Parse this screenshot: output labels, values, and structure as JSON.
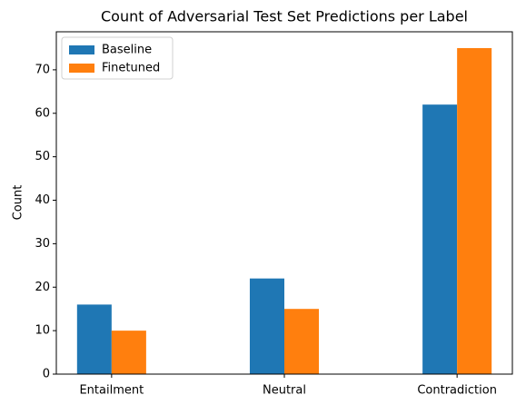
{
  "chart_data": {
    "type": "bar",
    "title": "Count of Adversarial Test Set Predictions per Label",
    "y_label": "Count",
    "categories": [
      "Entailment",
      "Neutral",
      "Contradiction"
    ],
    "series": [
      {
        "name": "Baseline",
        "color": "#1f77b4",
        "values": [
          16,
          22,
          62
        ]
      },
      {
        "name": "Finetuned",
        "color": "#ff7f0e",
        "values": [
          10,
          15,
          75
        ]
      }
    ],
    "ylim": [
      0,
      78.75
    ],
    "yticks": [
      0,
      10,
      20,
      30,
      40,
      50,
      60,
      70
    ],
    "legend": "upper left",
    "grid": false
  }
}
